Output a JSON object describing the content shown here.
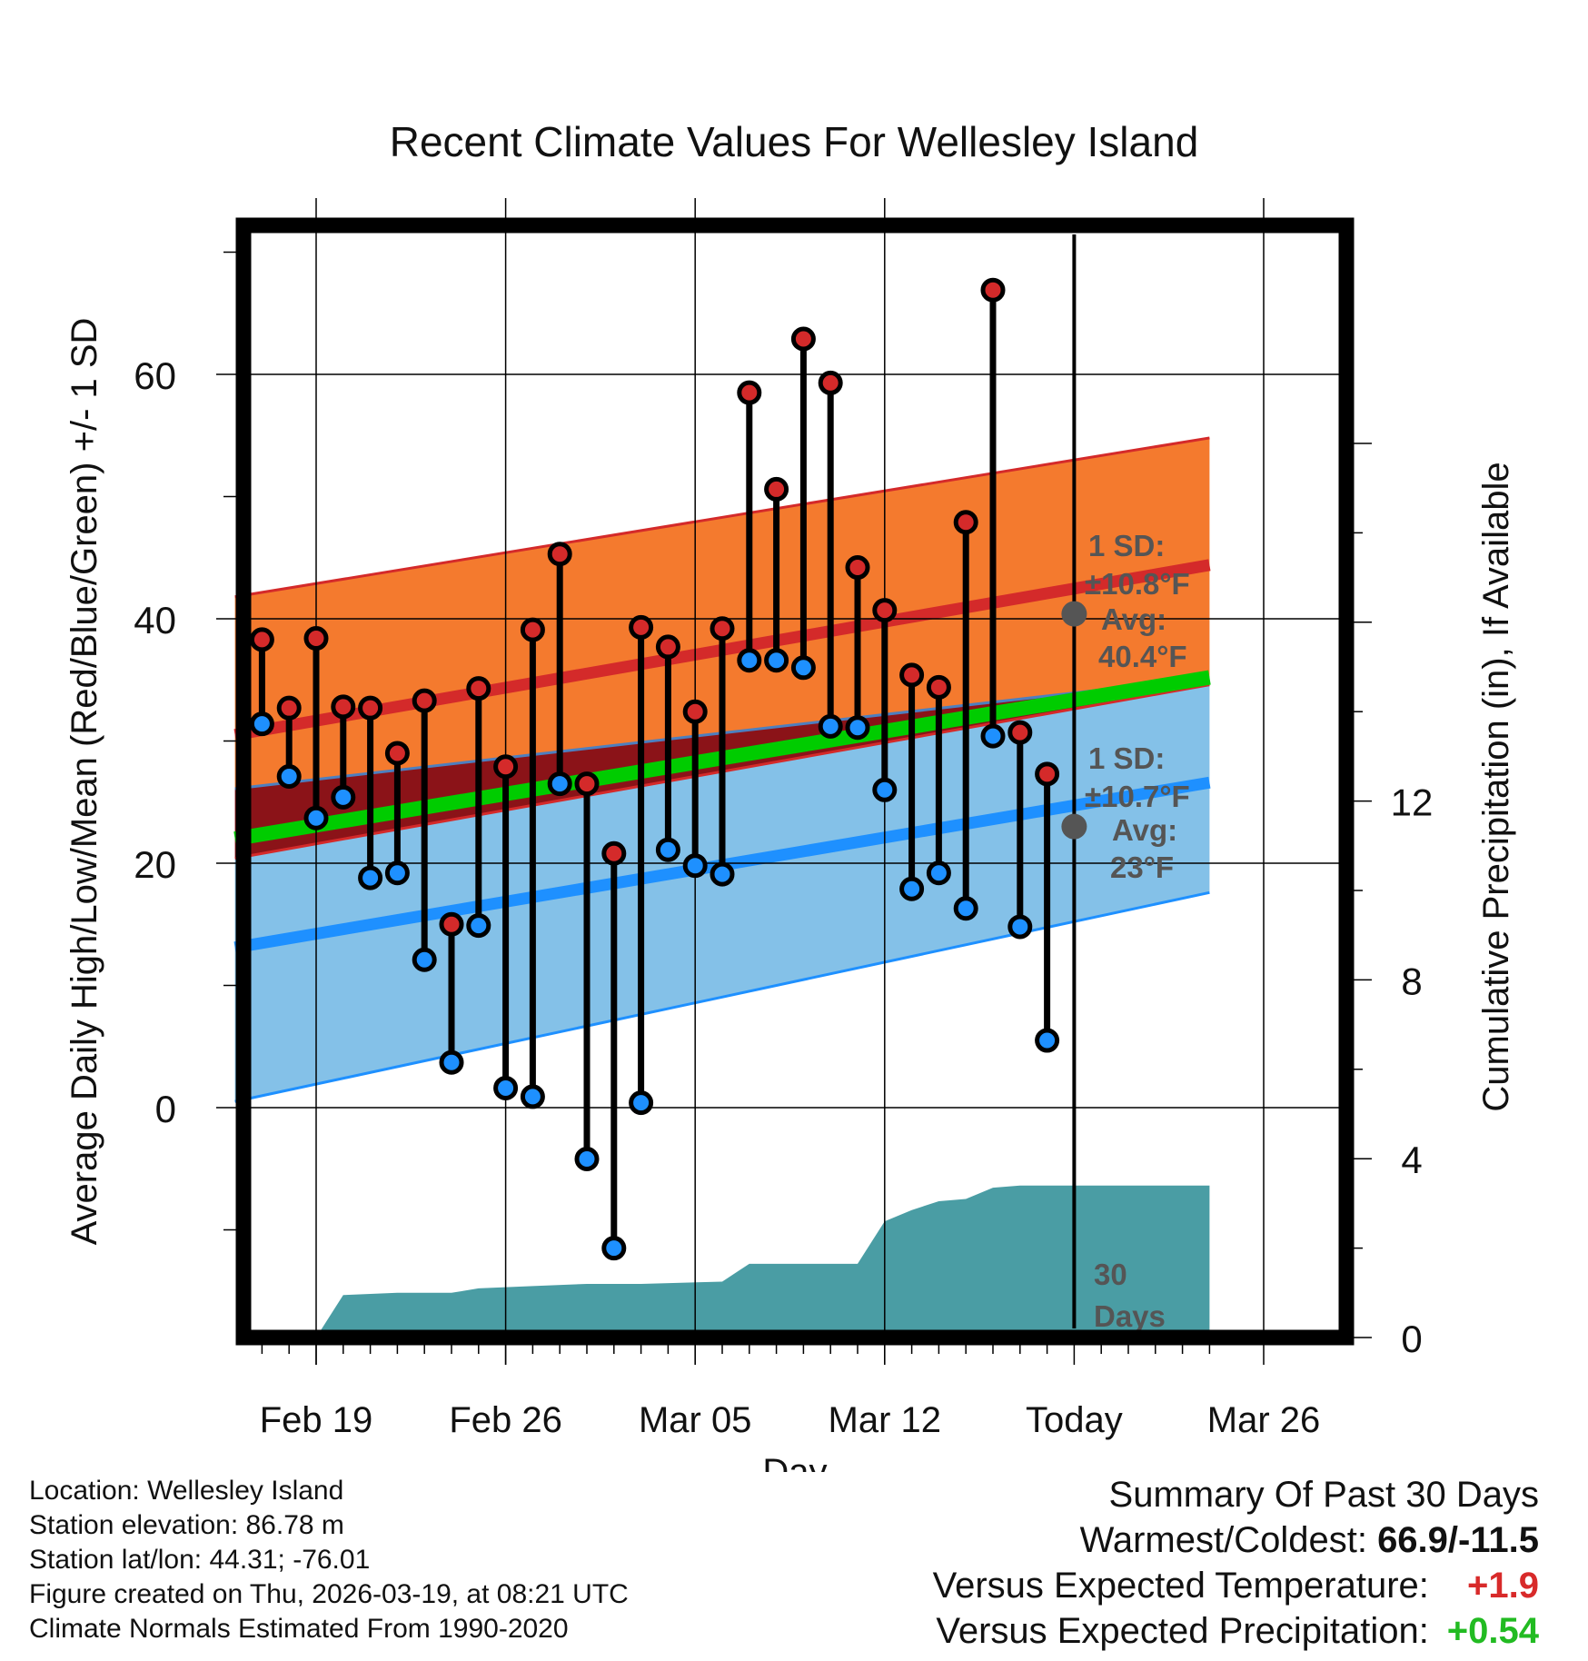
{
  "chart_data": {
    "type": "line",
    "title": "Recent Climate Values For Wellesley Island",
    "xlabel": "Day",
    "ylabel_left": "Average Daily High/Low/Mean (Red/Blue/Green) +/- 1 SD",
    "ylabel_right": "Cumulative Precipitation (in), If Available",
    "x_range": [
      -3,
      33
    ],
    "ylim": [
      -19,
      72
    ],
    "y_ticks": [
      0,
      20,
      40,
      60
    ],
    "y_tick_labels": [
      "0",
      "20",
      "40",
      "60"
    ],
    "precip_ylim": [
      0,
      22
    ],
    "precip_ticks": [
      0,
      4,
      8,
      12
    ],
    "precip_tick_labels": [
      "0",
      "4",
      "8",
      "12"
    ],
    "x_ticks": [
      0,
      7,
      14,
      21,
      28,
      35
    ],
    "x_tick_labels": [
      "Feb 19",
      "Feb 26",
      "Mar 05",
      "Mar 12",
      "Today",
      "Mar 26"
    ],
    "today_index": 28,
    "window_label": "30 Days",
    "days": [
      -2,
      -1,
      0,
      1,
      2,
      3,
      4,
      5,
      6,
      7,
      8,
      9,
      10,
      11,
      12,
      13,
      14,
      15,
      16,
      17,
      18,
      19,
      20,
      21,
      22,
      23,
      24,
      25,
      26,
      27
    ],
    "highs": [
      38.3,
      32.7,
      38.4,
      32.8,
      32.7,
      29.0,
      33.3,
      15.0,
      34.3,
      27.9,
      39.1,
      45.3,
      26.5,
      20.8,
      39.3,
      37.7,
      32.4,
      39.2,
      58.5,
      50.6,
      62.9,
      59.3,
      44.2,
      40.7,
      35.4,
      34.4,
      47.9,
      66.9,
      30.7,
      27.3
    ],
    "lows": [
      31.4,
      27.1,
      23.7,
      25.4,
      18.8,
      19.2,
      12.1,
      3.7,
      14.9,
      1.6,
      0.9,
      26.5,
      -4.2,
      -11.5,
      0.4,
      21.1,
      19.8,
      19.1,
      36.6,
      36.6,
      36.0,
      31.2,
      31.1,
      26.0,
      17.9,
      19.2,
      16.3,
      30.4,
      14.8,
      5.5
    ],
    "normals": {
      "x": [
        -3,
        33
      ],
      "avg_high": [
        30.5,
        44.4
      ],
      "avg_high_plus_sd": [
        41.8,
        54.8
      ],
      "avg_high_minus_sd": [
        26.1,
        35.2
      ],
      "avg_mean": [
        22.0,
        35.2
      ],
      "avg_low": [
        13.1,
        26.6
      ],
      "avg_low_plus_sd": [
        20.4,
        34.6
      ],
      "avg_low_minus_sd": [
        0.5,
        17.6
      ]
    },
    "precip": {
      "x": [
        -3,
        0,
        1,
        3,
        5,
        6,
        8,
        10,
        12,
        15,
        16,
        18,
        20,
        21,
        22,
        23,
        24,
        25,
        26,
        27,
        33
      ],
      "values": [
        0,
        0,
        0.95,
        1.0,
        1.0,
        1.1,
        1.15,
        1.2,
        1.2,
        1.25,
        1.65,
        1.65,
        1.65,
        2.6,
        2.85,
        3.05,
        3.1,
        3.35,
        3.4,
        3.4,
        3.4
      ]
    },
    "annotations": {
      "high": {
        "line1": "1 SD:",
        "line2": "±10.8°F",
        "line3": "Avg:",
        "line4": "40.4°F",
        "avg": 40.4
      },
      "low": {
        "line1": "1 SD:",
        "line2": "±10.7°F",
        "line3": "Avg:",
        "line4": "23°F",
        "avg": 23
      }
    },
    "colors": {
      "high_band": "#f47a2e",
      "high_line": "#d42a2a",
      "low_band": "#84c1e8",
      "low_line": "#1e90ff",
      "overlap": "#8b1318",
      "mean_line": "#00cc00",
      "precip": "#4a9da4",
      "high_dot": "#d42a2a",
      "low_dot": "#1e90ff",
      "annotation": "#555555"
    }
  },
  "info": {
    "location": "Location: Wellesley Island",
    "elevation": "Station elevation: 86.78 m",
    "latlon": "Station lat/lon: 44.31; -76.01",
    "created": "Figure created on Thu, 2026-03-19, at 08:21 UTC",
    "normals": "Climate Normals Estimated From 1990-2020"
  },
  "summary": {
    "title": "Summary Of Past 30 Days",
    "warmest_label": "Warmest/Coldest:",
    "warmest_value": "66.9/-11.5",
    "temp_label": "Versus Expected Temperature:",
    "temp_value": "+1.9",
    "precip_label": "Versus Expected Precipitation:",
    "precip_value": "+0.54"
  }
}
